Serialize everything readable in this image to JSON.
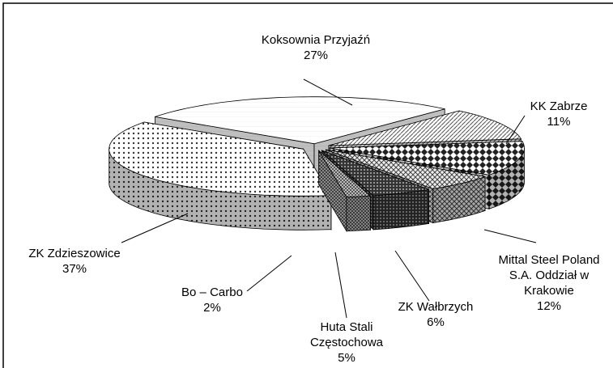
{
  "chart_data": {
    "type": "pie3d",
    "categories": [
      "Koksownia Przyjaźń",
      "KK Zabrze",
      "Mittal Steel Poland S.A. Oddział w Krakowie",
      "ZK Wałbrzych",
      "Huta Stali Częstochowa",
      "Bo – Carbo",
      "ZK Zdzieszowice"
    ],
    "values": [
      27,
      11,
      12,
      6,
      5,
      2,
      37
    ],
    "value_labels": [
      "27%",
      "11%",
      "12%",
      "6%",
      "5%",
      "2%",
      "37%"
    ]
  }
}
